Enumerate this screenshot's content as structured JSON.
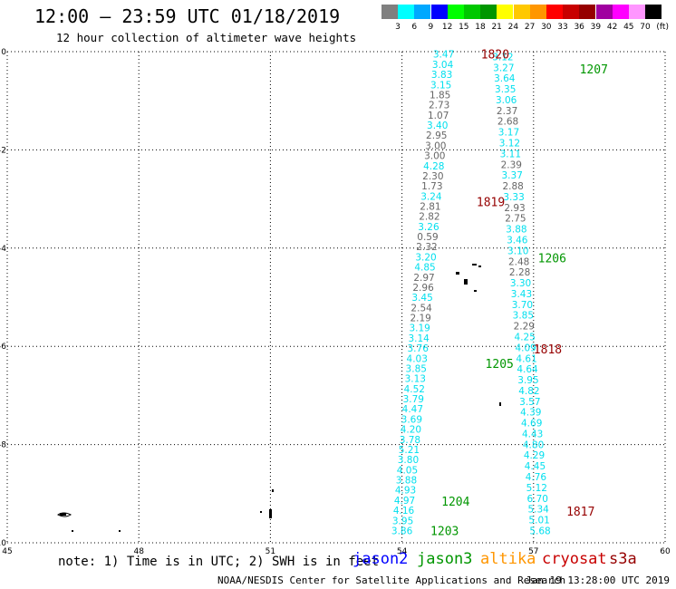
{
  "header": {
    "title": "12:00 – 23:59 UTC 01/18/2019",
    "subtitle": "12 hour collection of altimeter wave heights"
  },
  "legend": {
    "unit": "(ft)",
    "items": [
      {
        "label": "3",
        "color": "#808080"
      },
      {
        "label": "6",
        "color": "#00ffff"
      },
      {
        "label": "9",
        "color": "#00a8ff"
      },
      {
        "label": "12",
        "color": "#0000ff"
      },
      {
        "label": "15",
        "color": "#00ff00"
      },
      {
        "label": "18",
        "color": "#00c800"
      },
      {
        "label": "21",
        "color": "#009600"
      },
      {
        "label": "24",
        "color": "#ffff00"
      },
      {
        "label": "27",
        "color": "#ffc800"
      },
      {
        "label": "30",
        "color": "#ff9600"
      },
      {
        "label": "33",
        "color": "#ff0000"
      },
      {
        "label": "36",
        "color": "#c80000"
      },
      {
        "label": "39",
        "color": "#960000"
      },
      {
        "label": "42",
        "color": "#a000a0"
      },
      {
        "label": "45",
        "color": "#ff00ff"
      },
      {
        "label": "70",
        "color": "#ff96ff"
      },
      {
        "label": "",
        "color": "#000000"
      }
    ]
  },
  "axes": {
    "lon_ticks": [
      "45",
      "48",
      "51",
      "54",
      "57",
      "60"
    ],
    "lat_ticks": [
      "0",
      "-2",
      "-4",
      "-6",
      "-8",
      "-10"
    ],
    "lon_range": [
      45,
      60
    ],
    "lat_range": [
      -10,
      0
    ]
  },
  "tracks": {
    "a": {
      "x_start": 54.95,
      "x_end": 54.0,
      "lat_start": -0.05,
      "lat_end": -9.75,
      "values": [
        {
          "v": "3.47",
          "c": "cyan"
        },
        {
          "v": "3.04",
          "c": "cyan"
        },
        {
          "v": "3.83",
          "c": "cyan"
        },
        {
          "v": "3.15",
          "c": "cyan"
        },
        {
          "v": "1.85",
          "c": "gray"
        },
        {
          "v": "2.73",
          "c": "gray"
        },
        {
          "v": "1.07",
          "c": "gray"
        },
        {
          "v": "3.40",
          "c": "cyan"
        },
        {
          "v": "2.95",
          "c": "gray"
        },
        {
          "v": "3.00",
          "c": "gray"
        },
        {
          "v": "3.00",
          "c": "gray"
        },
        {
          "v": "4.28",
          "c": "cyan"
        },
        {
          "v": "2.30",
          "c": "gray"
        },
        {
          "v": "1.73",
          "c": "gray"
        },
        {
          "v": "3.24",
          "c": "cyan"
        },
        {
          "v": "2.81",
          "c": "gray"
        },
        {
          "v": "2.82",
          "c": "gray"
        },
        {
          "v": "3.26",
          "c": "cyan"
        },
        {
          "v": "0.59",
          "c": "gray"
        },
        {
          "v": "2.32",
          "c": "gray"
        },
        {
          "v": "3.20",
          "c": "cyan"
        },
        {
          "v": "4.85",
          "c": "cyan"
        },
        {
          "v": "2.97",
          "c": "gray"
        },
        {
          "v": "2.96",
          "c": "gray"
        },
        {
          "v": "3.45",
          "c": "cyan"
        },
        {
          "v": "2.54",
          "c": "gray"
        },
        {
          "v": "2.19",
          "c": "gray"
        },
        {
          "v": "3.19",
          "c": "cyan"
        },
        {
          "v": "3.14",
          "c": "cyan"
        },
        {
          "v": "3.76",
          "c": "cyan"
        },
        {
          "v": "4.03",
          "c": "cyan"
        },
        {
          "v": "3.85",
          "c": "cyan"
        },
        {
          "v": "3.13",
          "c": "cyan"
        },
        {
          "v": "4.52",
          "c": "cyan"
        },
        {
          "v": "3.79",
          "c": "cyan"
        },
        {
          "v": "4.47",
          "c": "cyan"
        },
        {
          "v": "3.69",
          "c": "cyan"
        },
        {
          "v": "4.20",
          "c": "cyan"
        },
        {
          "v": "3.78",
          "c": "cyan"
        },
        {
          "v": "5.21",
          "c": "cyan"
        },
        {
          "v": "3.80",
          "c": "cyan"
        },
        {
          "v": "4.05",
          "c": "cyan"
        },
        {
          "v": "3.88",
          "c": "cyan"
        },
        {
          "v": "4.93",
          "c": "cyan"
        },
        {
          "v": "4.97",
          "c": "cyan"
        },
        {
          "v": "4.16",
          "c": "cyan"
        },
        {
          "v": "3.95",
          "c": "cyan"
        },
        {
          "v": "3.86",
          "c": "cyan"
        }
      ]
    },
    "b": {
      "x_start": 56.3,
      "x_end": 57.15,
      "lat_start": -0.1,
      "lat_end": -9.75,
      "values": [
        {
          "v": "3.12",
          "c": "cyan"
        },
        {
          "v": "3.27",
          "c": "cyan"
        },
        {
          "v": "3.64",
          "c": "cyan"
        },
        {
          "v": "3.35",
          "c": "cyan"
        },
        {
          "v": "3.06",
          "c": "cyan"
        },
        {
          "v": "2.37",
          "c": "gray"
        },
        {
          "v": "2.68",
          "c": "gray"
        },
        {
          "v": "3.17",
          "c": "cyan"
        },
        {
          "v": "3.12",
          "c": "cyan"
        },
        {
          "v": "3.11",
          "c": "cyan"
        },
        {
          "v": "2.39",
          "c": "gray"
        },
        {
          "v": "3.37",
          "c": "cyan"
        },
        {
          "v": "2.88",
          "c": "gray"
        },
        {
          "v": "3.33",
          "c": "cyan"
        },
        {
          "v": "2.93",
          "c": "gray"
        },
        {
          "v": "2.75",
          "c": "gray"
        },
        {
          "v": "3.88",
          "c": "cyan"
        },
        {
          "v": "3.46",
          "c": "cyan"
        },
        {
          "v": "3.10",
          "c": "cyan"
        },
        {
          "v": "2.48",
          "c": "gray"
        },
        {
          "v": "2.28",
          "c": "gray"
        },
        {
          "v": "3.30",
          "c": "cyan"
        },
        {
          "v": "3.43",
          "c": "cyan"
        },
        {
          "v": "3.70",
          "c": "cyan"
        },
        {
          "v": "3.85",
          "c": "cyan"
        },
        {
          "v": "2.29",
          "c": "gray"
        },
        {
          "v": "4.25",
          "c": "cyan"
        },
        {
          "v": "4.09",
          "c": "cyan"
        },
        {
          "v": "4.61",
          "c": "cyan"
        },
        {
          "v": "4.64",
          "c": "cyan"
        },
        {
          "v": "3.95",
          "c": "cyan"
        },
        {
          "v": "4.82",
          "c": "cyan"
        },
        {
          "v": "3.57",
          "c": "cyan"
        },
        {
          "v": "4.39",
          "c": "cyan"
        },
        {
          "v": "4.69",
          "c": "cyan"
        },
        {
          "v": "4.43",
          "c": "cyan"
        },
        {
          "v": "4.80",
          "c": "cyan"
        },
        {
          "v": "4.29",
          "c": "cyan"
        },
        {
          "v": "4.45",
          "c": "cyan"
        },
        {
          "v": "4.76",
          "c": "cyan"
        },
        {
          "v": "5.12",
          "c": "cyan"
        },
        {
          "v": "6.70",
          "c": "cyan"
        },
        {
          "v": "5.34",
          "c": "cyan"
        },
        {
          "v": "5.01",
          "c": "cyan"
        },
        {
          "v": "5.68",
          "c": "cyan"
        }
      ]
    }
  },
  "time_labels": [
    {
      "text": "1820",
      "lon": 55.8,
      "lat": -0.05,
      "color": "#960000"
    },
    {
      "text": "1207",
      "lon": 58.05,
      "lat": -0.35,
      "color": "#009600"
    },
    {
      "text": "1819",
      "lon": 55.7,
      "lat": -3.05,
      "color": "#960000"
    },
    {
      "text": "1206",
      "lon": 57.1,
      "lat": -4.2,
      "color": "#009600"
    },
    {
      "text": "1818",
      "lon": 57.0,
      "lat": -6.05,
      "color": "#960000"
    },
    {
      "text": "1205",
      "lon": 55.9,
      "lat": -6.35,
      "color": "#009600"
    },
    {
      "text": "1204",
      "lon": 54.9,
      "lat": -9.15,
      "color": "#009600"
    },
    {
      "text": "1817",
      "lon": 57.75,
      "lat": -9.35,
      "color": "#960000"
    },
    {
      "text": "1203",
      "lon": 54.65,
      "lat": -9.75,
      "color": "#009600"
    }
  ],
  "note": "note: 1) Time is in UTC; 2) SWH is in feet",
  "satellites": [
    {
      "name": "jason2",
      "color": "#0000ff"
    },
    {
      "name": "jason3",
      "color": "#009600"
    },
    {
      "name": "altika",
      "color": "#ff9600"
    },
    {
      "name": "cryosat",
      "color": "#c80000"
    },
    {
      "name": "s3a",
      "color": "#960000"
    }
  ],
  "footer": {
    "credit": "NOAA/NESDIS Center for Satellite Applications and Research",
    "timestamp": "Jan 19 13:28:00 UTC 2019"
  }
}
